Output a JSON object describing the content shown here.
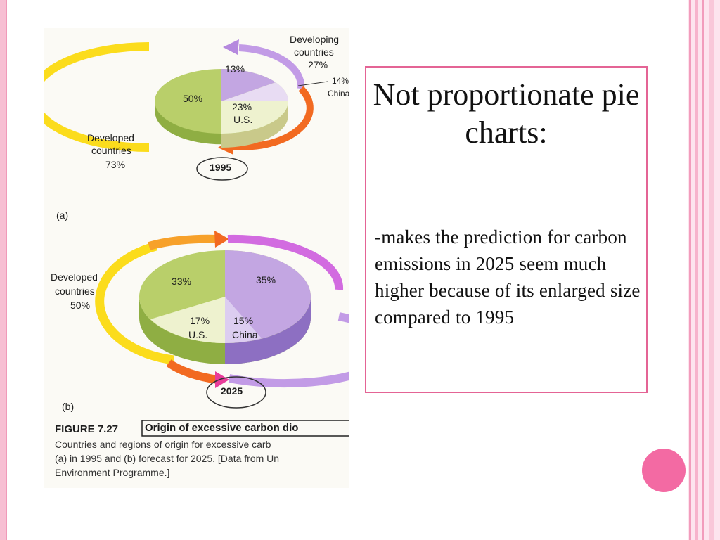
{
  "chart_data": [
    {
      "type": "pie",
      "year_label": "1995",
      "panel_label": "(a)",
      "slices": [
        {
          "label": "",
          "value": 50,
          "value_label": "50%"
        },
        {
          "label": "Developing countries",
          "value": 13,
          "value_label": "13%"
        },
        {
          "label": "China",
          "value": 14,
          "value_label": "14%"
        },
        {
          "label": "U.S.",
          "value": 23,
          "value_label": "23%"
        }
      ],
      "group_labels": [
        {
          "text": "Developing countries 27%"
        },
        {
          "text": "Developed countries 73%"
        }
      ]
    },
    {
      "type": "pie",
      "year_label": "2025",
      "panel_label": "(b)",
      "slices": [
        {
          "label": "",
          "value": 33,
          "value_label": "33%"
        },
        {
          "label": "",
          "value": 35,
          "value_label": "35%"
        },
        {
          "label": "China",
          "value": 15,
          "value_label": "15%"
        },
        {
          "label": "U.S.",
          "value": 17,
          "value_label": "17%"
        }
      ],
      "group_labels": [
        {
          "text": "Developed countries 50%"
        }
      ]
    }
  ],
  "figure": {
    "pie1": {
      "dev_top": "Developing",
      "dev_mid": "countries",
      "dev_pct": "27%",
      "china_pct": "14%",
      "china": "China",
      "slice_13": "13%",
      "slice_50": "50%",
      "slice_23": "23%",
      "us": "U.S.",
      "developed_1": "Developed",
      "developed_2": "countries",
      "developed_pct": "73%",
      "year": "1995",
      "panel": "(a)"
    },
    "pie2": {
      "developed_1": "Developed",
      "developed_2": "countries",
      "developed_pct": "50%",
      "slice_33": "33%",
      "slice_35": "35%",
      "slice_17": "17%",
      "us": "U.S.",
      "slice_15": "15%",
      "china": "China",
      "year": "2025",
      "panel": "(b)"
    },
    "caption": {
      "label": "FIGURE 7.27",
      "title": "Origin of excessive carbon dio",
      "line1": "Countries and regions of origin for excessive carb",
      "line2": "(a) in 1995 and (b) forecast for 2025. [Data from Un",
      "line3": "Environment Programme.]"
    }
  },
  "slide": {
    "title": "Not proportionate pie charts:",
    "body": "-makes the prediction for carbon emissions in 2025 seem much higher because of its enlarged size compared to 1995"
  },
  "colors": {
    "accent_pink": "#e46495",
    "bullet_pink": "#f36aa3",
    "slice_green": "#b9cf6a",
    "slice_lightgreen": "#eef2cf",
    "slice_purple": "#c3a6e2",
    "arrow_orange": "#f26a21",
    "arrow_yellow": "#fbdc1c"
  }
}
